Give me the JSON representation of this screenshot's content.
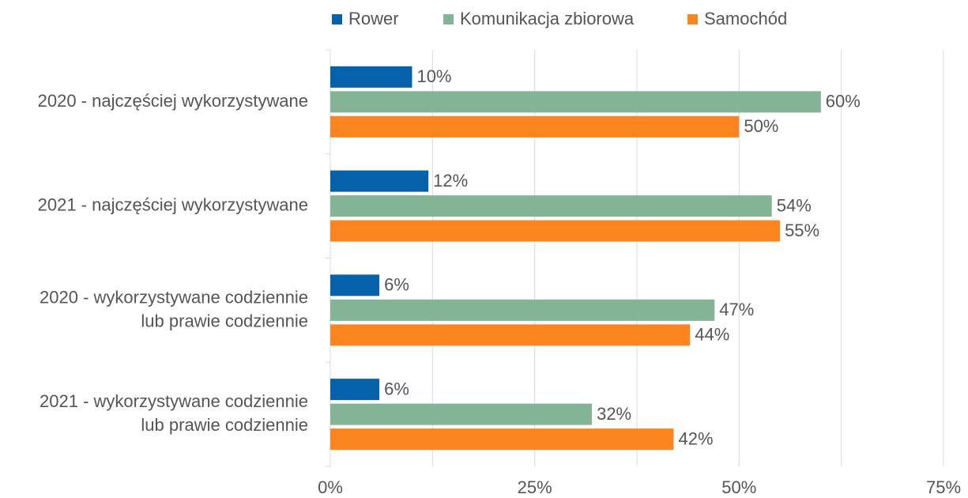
{
  "chart_data": {
    "type": "hbar",
    "categories": [
      [
        "2020 - najczęściej wykorzystywane"
      ],
      [
        "2021 - najczęściej wykorzystywane"
      ],
      [
        "2020 - wykorzystywane codziennie",
        "lub prawie codziennie"
      ],
      [
        "2021 - wykorzystywane codziennie",
        "lub prawie codziennie"
      ]
    ],
    "series": [
      {
        "name": "Rower",
        "color": "#0561a9",
        "values": [
          10,
          12,
          6,
          6
        ],
        "value_labels": [
          "10%",
          "12%",
          "6%",
          "6%"
        ]
      },
      {
        "name": "Komunikacja zbiorowa",
        "color": "#82b495",
        "values": [
          60,
          54,
          47,
          32
        ],
        "value_labels": [
          "60%",
          "54%",
          "47%",
          "32%"
        ]
      },
      {
        "name": "Samochód",
        "color": "#fd8520",
        "values": [
          50,
          55,
          44,
          42
        ],
        "value_labels": [
          "50%",
          "55%",
          "44%",
          "42%"
        ]
      }
    ],
    "xlim": [
      0,
      75
    ],
    "xticks": [
      {
        "value": 0,
        "label": "0%"
      },
      {
        "value": 25,
        "label": "25%"
      },
      {
        "value": 50,
        "label": "50%"
      },
      {
        "value": 75,
        "label": "75%"
      }
    ],
    "minor_xticks": [
      12.5,
      37.5,
      62.5
    ],
    "grid": true,
    "legend": "top"
  }
}
